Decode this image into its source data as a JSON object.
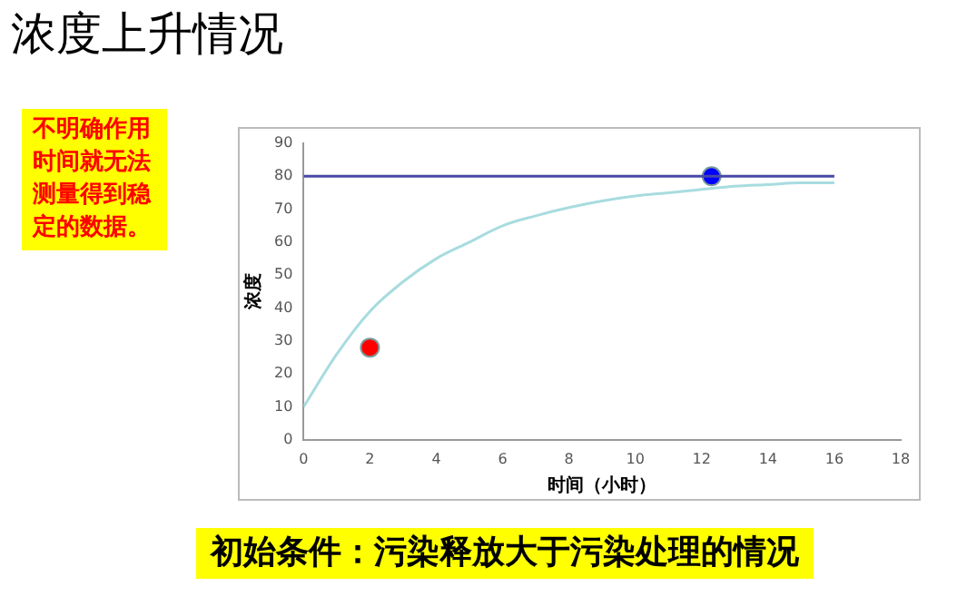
{
  "chart_data": {
    "type": "line",
    "title": "浓度上升情况",
    "xlabel": "时间（小时）",
    "ylabel": "浓度",
    "annotations": [
      "不明确作用时间就无法测量得到稳定的数据。",
      "初始条件：污染释放大于污染处理的情况"
    ],
    "series": [
      {
        "type": "line",
        "color": "#a8dcdf",
        "x": [
          0,
          1,
          2,
          3,
          4,
          5,
          6,
          7,
          8,
          9,
          10,
          11,
          12,
          13,
          14,
          15,
          16
        ],
        "values": [
          10,
          26,
          39,
          48,
          55,
          60,
          65,
          68,
          70.5,
          72.5,
          74,
          75,
          76,
          77,
          77.5,
          78,
          78
        ]
      },
      {
        "type": "line",
        "color": "#4848a8",
        "x": [
          0,
          16
        ],
        "values": [
          80,
          80
        ]
      },
      {
        "type": "scatter",
        "colors": [
          "#ff0000",
          "#0000ff"
        ],
        "x": [
          2,
          12.3
        ],
        "values": [
          28,
          80
        ]
      }
    ],
    "xlim": [
      0,
      18
    ],
    "xticks": [
      0,
      2,
      4,
      6,
      8,
      10,
      12,
      14,
      16,
      18
    ],
    "ylim": [
      0,
      90
    ],
    "yticks": [
      0,
      10,
      20,
      30,
      40,
      50,
      60,
      70,
      80,
      90
    ],
    "grid": false,
    "legend": false
  }
}
